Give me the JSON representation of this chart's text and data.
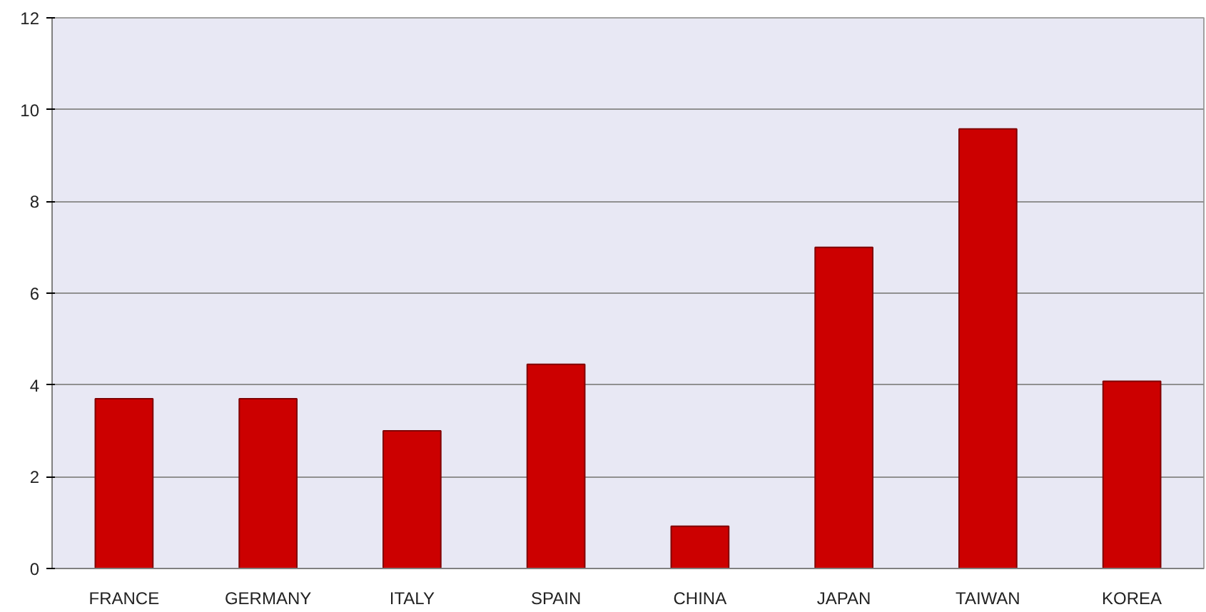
{
  "chart_data": {
    "type": "bar",
    "categories": [
      "FRANCE",
      "GERMANY",
      "ITALY",
      "SPAIN",
      "CHINA",
      "JAPAN",
      "TAIWAN",
      "KOREA"
    ],
    "values": [
      3.7,
      3.7,
      3.0,
      4.45,
      0.92,
      7.0,
      9.58,
      4.08
    ],
    "color": "#cc0000",
    "ylim": [
      0,
      12
    ],
    "yticks": [
      0,
      2,
      4,
      6,
      8,
      10,
      12
    ],
    "grid": "y"
  }
}
